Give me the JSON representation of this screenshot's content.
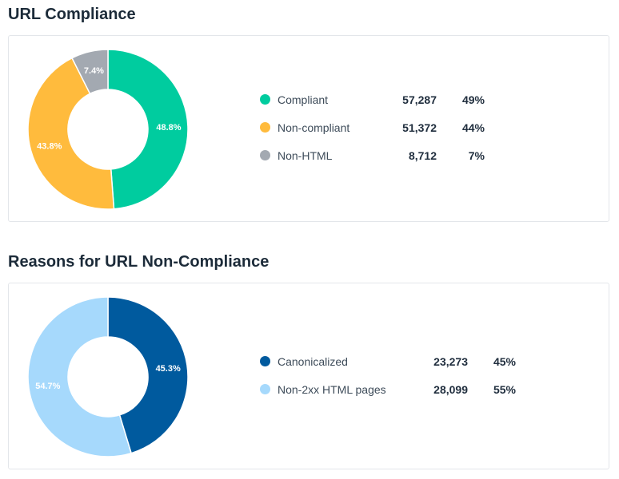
{
  "chart_data": [
    {
      "type": "pie",
      "title": "URL Compliance",
      "categories": [
        "Compliant",
        "Non-compliant",
        "Non-HTML"
      ],
      "values": [
        57287,
        51372,
        8712
      ],
      "counts_display": [
        "57,287",
        "51,372",
        "8,712"
      ],
      "percent_display": [
        "49%",
        "44%",
        "7%"
      ],
      "slice_labels": [
        "48.8%",
        "43.8%",
        "7.4%"
      ],
      "colors": [
        "#00cc9f",
        "#ffbb3d",
        "#a3a9b1"
      ],
      "legend_position": "right"
    },
    {
      "type": "pie",
      "title": "Reasons for URL Non-Compliance",
      "categories": [
        "Canonicalized",
        "Non-2xx HTML pages"
      ],
      "values": [
        23273,
        28099
      ],
      "counts_display": [
        "23,273",
        "28,099"
      ],
      "percent_display": [
        "45%",
        "55%"
      ],
      "slice_labels": [
        "45.3%",
        "54.7%"
      ],
      "colors": [
        "#005a9e",
        "#a6d9fc"
      ],
      "legend_position": "right"
    }
  ]
}
